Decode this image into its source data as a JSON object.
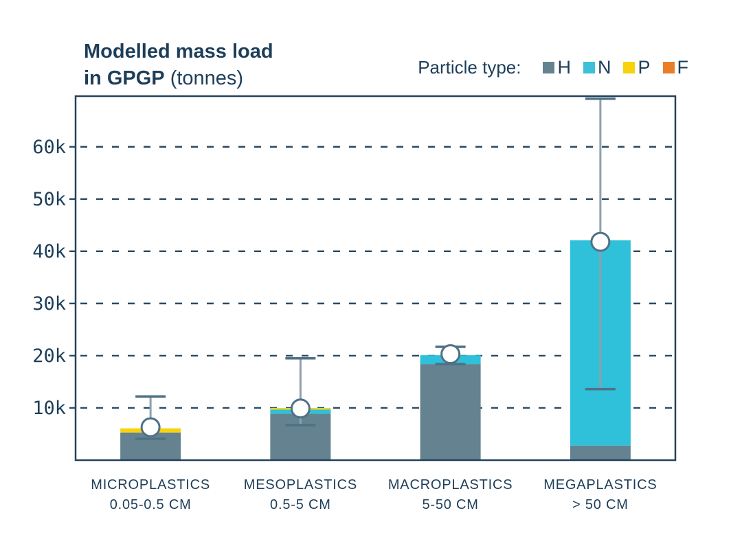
{
  "title": {
    "line1": "Modelled mass load",
    "line2_bold": "in GPGP",
    "line2_unit": "(tonnes)"
  },
  "legend": {
    "label": "Particle type:",
    "items": [
      {
        "key": "H",
        "color": "#64828f"
      },
      {
        "key": "N",
        "color": "#3ec0d9"
      },
      {
        "key": "P",
        "color": "#f9d20e"
      },
      {
        "key": "F",
        "color": "#ea7d28"
      }
    ]
  },
  "colors": {
    "navy_text": "#1d3e59",
    "frame": "#22425c",
    "grid": "#2c4a60",
    "error_line": "#8ea0ad",
    "error_cap": "#4f7186",
    "circle_fill": "#ffffff",
    "background": "#ffffff"
  },
  "chart_data": {
    "type": "bar",
    "stacked": true,
    "title": "Modelled mass load in GPGP (tonnes)",
    "xlabel": "",
    "ylabel": "tonnes",
    "grid": "dashed-horizontal",
    "legend_position": "top-right",
    "categories": [
      "MICROPLASTICS",
      "MESOPLASTICS",
      "MACROPLASTICS",
      "MEGAPLASTICS"
    ],
    "size_ranges": [
      "0.05-0.5 CM",
      "0.5-5 CM",
      "5-50 CM",
      "> 50 CM"
    ],
    "series": [
      {
        "name": "H",
        "color": "#64828f",
        "values": [
          5300,
          8900,
          18400,
          2800
        ]
      },
      {
        "name": "N",
        "color": "#2fc0da",
        "values": [
          0,
          800,
          1700,
          39300
        ]
      },
      {
        "name": "P",
        "color": "#f9d20e",
        "values": [
          800,
          300,
          0,
          0
        ]
      },
      {
        "name": "F",
        "color": "#ea7d28",
        "values": [
          0,
          0,
          0,
          0
        ]
      }
    ],
    "totals": [
      6100,
      10000,
      20100,
      42100
    ],
    "error_bars": {
      "center": [
        6300,
        9900,
        20300,
        41800
      ],
      "low": [
        4100,
        6700,
        18400,
        13600
      ],
      "high": [
        12200,
        19500,
        21700,
        69200
      ]
    },
    "y_ticks": [
      "10k",
      "20k",
      "30k",
      "40k",
      "50k",
      "60k"
    ],
    "y_tick_values": [
      10000,
      20000,
      30000,
      40000,
      50000,
      60000
    ],
    "ylim": [
      0,
      69700
    ]
  }
}
